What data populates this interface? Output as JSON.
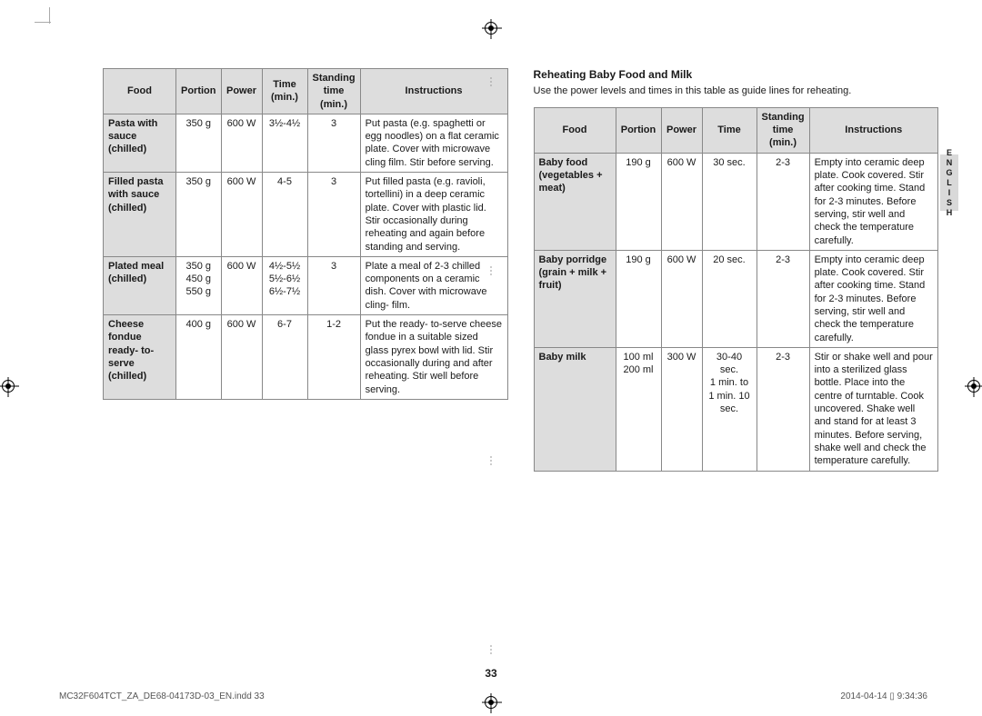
{
  "page_number": "33",
  "footer_left": "MC32F604TCT_ZA_DE68-04173D-03_EN.indd   33",
  "footer_right": "2014-04-14   ▯ 9:34:36",
  "side_tab": "ENGLISH",
  "left_table": {
    "headers": [
      "Food",
      "Portion",
      "Power",
      "Time (min.)",
      "Standing time (min.)",
      "Instructions"
    ],
    "rows": [
      {
        "food": "Pasta with sauce (chilled)",
        "portion": "350 g",
        "power": "600 W",
        "time": "3½-4½",
        "standing": "3",
        "instructions": "Put pasta (e.g. spaghetti or egg noodles) on a flat ceramic plate. Cover with microwave cling film. Stir before serving."
      },
      {
        "food": "Filled pasta with sauce (chilled)",
        "portion": "350 g",
        "power": "600 W",
        "time": "4-5",
        "standing": "3",
        "instructions": "Put filled pasta (e.g. ravioli, tortellini) in a deep ceramic plate. Cover with plastic lid. Stir occasionally during reheating and again before standing and serving."
      },
      {
        "food": "Plated meal (chilled)",
        "portion": "350 g\n450 g\n550 g",
        "power": "600 W",
        "time": "4½-5½\n5½-6½\n6½-7½",
        "standing": "3",
        "instructions": "Plate a meal of 2-3 chilled components on a ceramic dish. Cover with microwave cling- film."
      },
      {
        "food": "Cheese fondue ready- to-serve (chilled)",
        "portion": "400 g",
        "power": "600 W",
        "time": "6-7",
        "standing": "1-2",
        "instructions": "Put the ready- to-serve cheese fondue in a suitable sized glass pyrex bowl with lid. Stir occasionally during and after reheating. Stir well before serving."
      }
    ]
  },
  "right_section": {
    "heading": "Reheating Baby Food and Milk",
    "intro": "Use the power levels and times in this table as guide lines for reheating.",
    "headers": [
      "Food",
      "Portion",
      "Power",
      "Time",
      "Standing time (min.)",
      "Instructions"
    ],
    "rows": [
      {
        "food": "Baby food (vegetables + meat)",
        "portion": "190 g",
        "power": "600 W",
        "time": "30 sec.",
        "standing": "2-3",
        "instructions": "Empty into ceramic deep plate. Cook covered. Stir after cooking time. Stand for 2-3 minutes. Before serving, stir well and check the temperature carefully."
      },
      {
        "food": "Baby porridge (grain + milk + fruit)",
        "portion": "190 g",
        "power": "600 W",
        "time": "20 sec.",
        "standing": "2-3",
        "instructions": "Empty into ceramic deep plate. Cook covered. Stir after cooking time. Stand for 2-3 minutes. Before serving, stir well and check the temperature carefully."
      },
      {
        "food": "Baby milk",
        "portion": "100 ml\n200 ml",
        "power": "300 W",
        "time": "30-40 sec.\n1 min. to 1 min. 10 sec.",
        "standing": "2-3",
        "instructions": "Stir or shake well and pour into a sterilized glass bottle. Place into the centre of turntable. Cook uncovered. Shake well and stand for at least 3 minutes. Before serving, shake well and check the temperature carefully."
      }
    ]
  }
}
